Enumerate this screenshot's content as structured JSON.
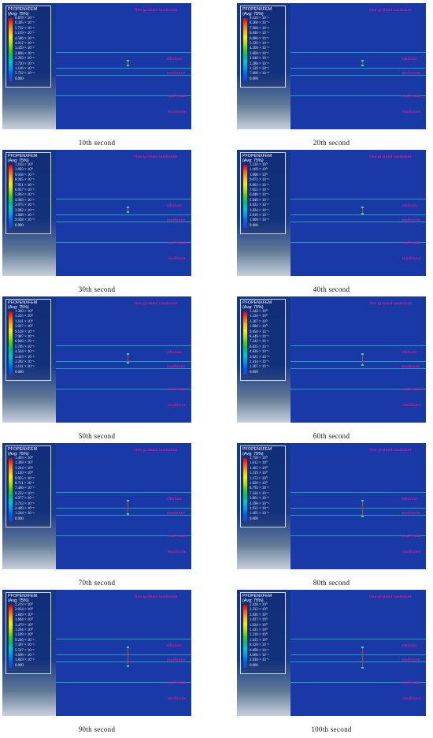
{
  "legend": {
    "title": "PFOPENXFEM",
    "avg": "(Avg: 75%)"
  },
  "layers": {
    "fine": "fine-grained sandstone",
    "silt": "siltstone",
    "mud1": "mudstone",
    "coal": "coal seam",
    "mud2": "mudstone"
  },
  "panels": [
    {
      "caption": "10th  second",
      "values": [
        "6.878 × 10⁻¹",
        "6.305 × 10⁻¹",
        "5.732 × 10⁻¹",
        "5.159 × 10⁻¹",
        "4.586 × 10⁻¹",
        "4.012 × 10⁻¹",
        "3.439 × 10⁻¹",
        "2.866 × 10⁻¹",
        "2.293 × 10⁻¹",
        "1.720 × 10⁻¹",
        "1.146 × 10⁻¹",
        "5.732 × 10⁻²",
        "0.000"
      ],
      "fracture": 0.08
    },
    {
      "caption": "20th  second",
      "values": [
        "9.120 × 10⁻¹",
        "8.360 × 10⁻¹",
        "7.600 × 10⁻¹",
        "6.840 × 10⁻¹",
        "6.080 × 10⁻¹",
        "5.320 × 10⁻¹",
        "4.560 × 10⁻¹",
        "3.800 × 10⁻¹",
        "3.040 × 10⁻¹",
        "2.280 × 10⁻¹",
        "1.520 × 10⁻¹",
        "7.600 × 10⁻²",
        "0.000"
      ],
      "fracture": 0.14
    },
    {
      "caption": "30th  second",
      "values": [
        "1.193 × 10⁰",
        "1.093 × 10⁰",
        "9.938 × 10⁻¹",
        "8.945 × 10⁻¹",
        "7.951 × 10⁻¹",
        "6.957 × 10⁻¹",
        "5.963 × 10⁻¹",
        "4.969 × 10⁻¹",
        "3.975 × 10⁻¹",
        "2.982 × 10⁻¹",
        "1.988 × 10⁻¹",
        "9.938 × 10⁻²",
        "0.000"
      ],
      "fracture": 0.2
    },
    {
      "caption": "40th  second",
      "values": [
        "1.210 × 10⁰",
        "1.109 × 10⁰",
        "1.008 × 10⁰",
        "9.071 × 10⁻¹",
        "8.063 × 10⁻¹",
        "7.055 × 10⁻¹",
        "6.048 × 10⁻¹",
        "5.040 × 10⁻¹",
        "4.032 × 10⁻¹",
        "3.024 × 10⁻¹",
        "2.016 × 10⁻¹",
        "1.008 × 10⁻¹",
        "0.000"
      ],
      "fracture": 0.26
    },
    {
      "caption": "50th  second",
      "values": [
        "1.369 × 10⁰",
        "1.255 × 10⁰",
        "1.141 × 10⁰",
        "1.027 × 10⁰",
        "9.128 × 10⁻¹",
        "7.987 × 10⁻¹",
        "6.846 × 10⁻¹",
        "5.705 × 10⁻¹",
        "4.564 × 10⁻¹",
        "3.423 × 10⁻¹",
        "2.282 × 10⁻¹",
        "1.141 × 10⁻¹",
        "0.000"
      ],
      "fracture": 0.32
    },
    {
      "caption": "60th  second",
      "values": [
        "1.448 × 10⁰",
        "1.328 × 10⁰",
        "1.207 × 10⁰",
        "1.086 × 10⁰",
        "9.656 × 10⁻¹",
        "8.449 × 10⁻¹",
        "7.242 × 10⁻¹",
        "6.035 × 10⁻¹",
        "4.828 × 10⁻¹",
        "3.621 × 10⁻¹",
        "2.414 × 10⁻¹",
        "1.207 × 10⁻¹",
        "0.000"
      ],
      "fracture": 0.4
    },
    {
      "caption": "70th  second",
      "values": [
        "1.493 × 10⁰",
        "1.369 × 10⁰",
        "1.244 × 10⁰",
        "1.120 × 10⁰",
        "9.955 × 10⁻¹",
        "8.711 × 10⁻¹",
        "7.466 × 10⁻¹",
        "6.222 × 10⁻¹",
        "4.977 × 10⁻¹",
        "3.733 × 10⁻¹",
        "2.489 × 10⁻¹",
        "1.244 × 10⁻¹",
        "0.000"
      ],
      "fracture": 0.48
    },
    {
      "caption": "80th  second",
      "values": [
        "1.758 × 10⁰",
        "1.612 × 10⁰",
        "1.465 × 10⁰",
        "1.319 × 10⁰",
        "1.172 × 10⁰",
        "1.026 × 10⁰",
        "8.792 × 10⁻¹",
        "7.326 × 10⁻¹",
        "5.861 × 10⁻¹",
        "4.396 × 10⁻¹",
        "2.931 × 10⁻¹",
        "1.465 × 10⁻¹",
        "0.000"
      ],
      "fracture": 0.56
    },
    {
      "caption": "90th  second",
      "values": [
        "2.219 × 10⁰",
        "2.034 × 10⁰",
        "1.849 × 10⁰",
        "1.664 × 10⁰",
        "1.479 × 10⁰",
        "1.294 × 10⁰",
        "1.109 × 10⁰",
        "9.246 × 10⁻¹",
        "7.397 × 10⁻¹",
        "5.547 × 10⁻¹",
        "3.698 × 10⁻¹",
        "1.849 × 10⁻¹",
        "0.000"
      ],
      "fracture": 0.64
    },
    {
      "caption": "100th  second",
      "values": [
        "2.436 × 10⁰",
        "2.233 × 10⁰",
        "2.030 × 10⁰",
        "1.827 × 10⁰",
        "1.624 × 10⁰",
        "1.421 × 10⁰",
        "1.218 × 10⁰",
        "1.015 × 10⁰",
        "8.120 × 10⁻¹",
        "6.090 × 10⁻¹",
        "4.060 × 10⁻¹",
        "2.030 × 10⁻¹",
        "0.000"
      ],
      "fracture": 0.7
    }
  ]
}
